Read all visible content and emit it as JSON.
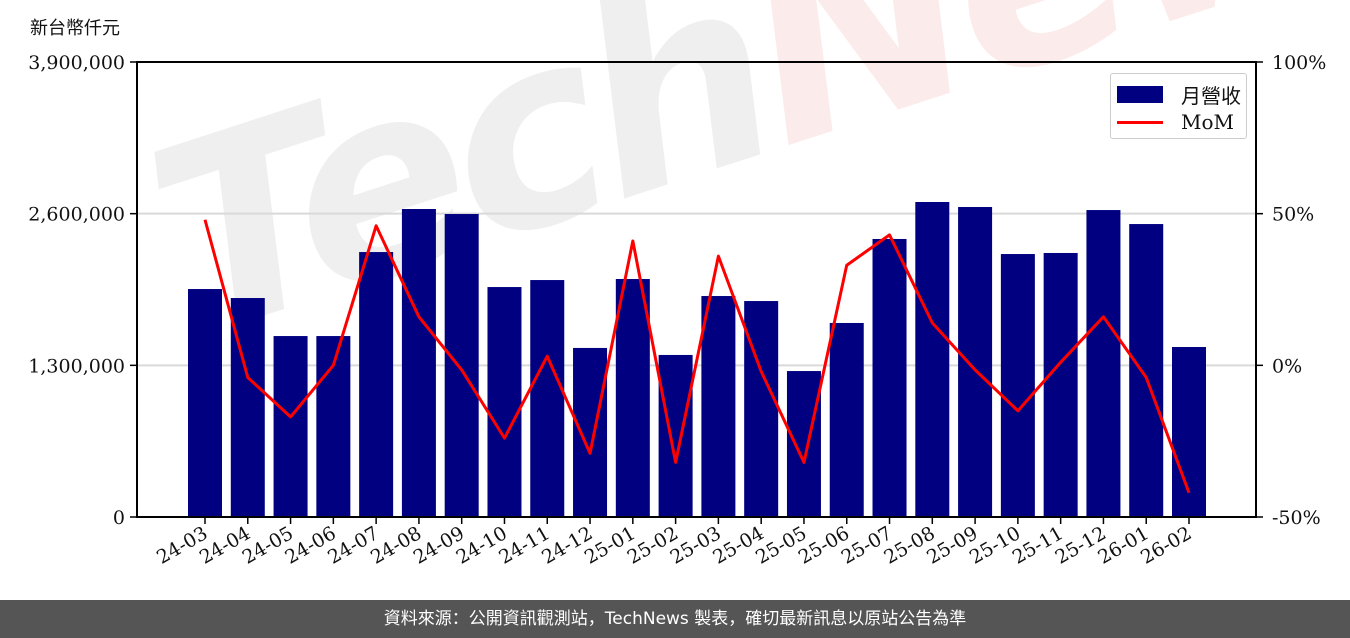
{
  "unit_label": "新台幣仟元",
  "footer": "資料來源：公開資訊觀測站，TechNews 製表，確切最新訊息以原站公告為準",
  "watermark": [
    "Tech",
    "News"
  ],
  "colors": {
    "bar": "#000080",
    "line": "#ff0000",
    "grid": "#d9d9d9"
  },
  "chart_data": {
    "type": "bar+line",
    "categories": [
      "24-03",
      "24-04",
      "24-05",
      "24-06",
      "24-07",
      "24-08",
      "24-09",
      "24-10",
      "24-11",
      "24-12",
      "25-01",
      "25-02",
      "25-03",
      "25-04",
      "25-05",
      "25-06",
      "25-07",
      "25-08",
      "25-09",
      "25-10",
      "25-11",
      "25-12",
      "26-01",
      "26-02"
    ],
    "series": [
      {
        "name": "月營收",
        "type": "bar",
        "axis": "left",
        "values": [
          1954000,
          1877000,
          1551000,
          1551000,
          2271000,
          2640000,
          2597000,
          1971000,
          2031000,
          1449000,
          2040000,
          1389000,
          1894000,
          1851000,
          1251000,
          1663000,
          2383000,
          2700000,
          2657000,
          2254000,
          2263000,
          2631000,
          2511000,
          1457000
        ]
      },
      {
        "name": "MoM",
        "type": "line",
        "axis": "right",
        "values": [
          48,
          -4,
          -17,
          0,
          46,
          16,
          -1.5,
          -24,
          3,
          -29,
          41,
          -32,
          36,
          -2,
          -32,
          33,
          43,
          14,
          -1.5,
          -15,
          1,
          16,
          -4,
          -42
        ]
      }
    ],
    "left_axis": {
      "ylim": [
        0,
        3900000
      ],
      "ticks": [
        "0",
        "1,300,000",
        "2,600,000",
        "3,900,000"
      ]
    },
    "right_axis": {
      "ylim": [
        -50,
        100
      ],
      "ticks": [
        "-50%",
        "0%",
        "50%",
        "100%"
      ]
    },
    "grid": "horizontal",
    "legend": "top-right"
  }
}
